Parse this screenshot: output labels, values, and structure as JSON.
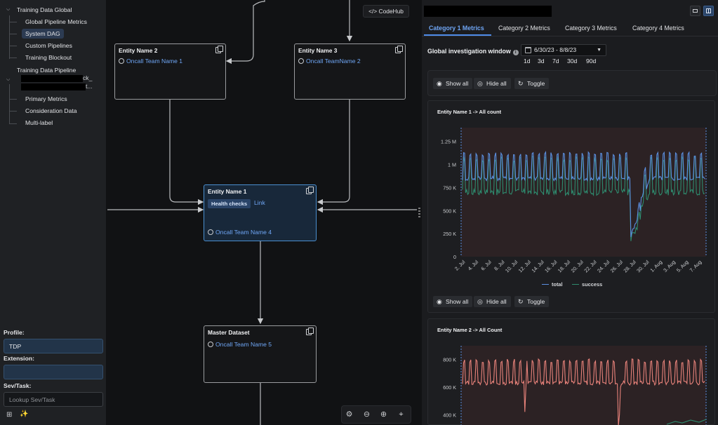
{
  "sidebar": {
    "tree": [
      {
        "label": "Training Data Global",
        "level": 0,
        "expanded": true
      },
      {
        "label": "Global Pipeline Metrics",
        "level": 1
      },
      {
        "label": "System DAG",
        "level": 1,
        "selected": true
      },
      {
        "label": "Custom Pipelines",
        "level": 1
      },
      {
        "label": "Training Blockout",
        "level": 1
      },
      {
        "label": "Training Data Pipeline",
        "level": 0
      },
      {
        "label": "Primary Metrics",
        "level": 1
      },
      {
        "label": "Consideration Data",
        "level": 1
      },
      {
        "label": "Multi-label",
        "level": 1
      }
    ],
    "redacted_item_text_fragment_1": "ck_",
    "redacted_item_text_fragment_2": "t...",
    "profile_label": "Profile:",
    "profile_value": "TDP",
    "extension_label": "Extension:",
    "extension_value": "",
    "sev_label": "Sev/Task:",
    "sev_placeholder": "Lookup Sev/Task"
  },
  "graph": {
    "codehub_label": "CodeHub",
    "codehub_icon": "code-icon",
    "nodes": [
      {
        "id": "entity2",
        "title": "Entity Name 2",
        "team": "Oncall Team Name 1"
      },
      {
        "id": "entity3",
        "title": "Entity Name 3",
        "team": "Oncall TeamName 2"
      },
      {
        "id": "entity1",
        "title": "Entity Name 1",
        "team": "Oncall Team Name 4",
        "badge": "Health checks",
        "link": "Link"
      },
      {
        "id": "master",
        "title": "Master Dataset",
        "team": "Oncall Team Name 5"
      }
    ],
    "zoom_controls": [
      "fit-icon",
      "zoom-out-icon",
      "zoom-in-icon",
      "recenter-icon"
    ]
  },
  "right": {
    "tabs": [
      "Category 1 Metrics",
      "Category 2 Metrics",
      "Category 3 Metrics",
      "Category 4 Metrics"
    ],
    "active_tab": 0,
    "window_label": "Global investigation window",
    "date_range": "6/30/23 - 8/8/23",
    "quick_ranges": [
      "1d",
      "3d",
      "7d",
      "30d",
      "90d"
    ],
    "buttons": {
      "show_all": "Show all",
      "hide_all": "Hide all",
      "toggle": "Toggle"
    },
    "colors": {
      "accent": "#4f8be8",
      "total": "#5b8fe0",
      "success": "#2e8b6e",
      "entity2": "#e8827a",
      "plot_bg": "#2c2224"
    }
  },
  "chart_data": [
    {
      "type": "line",
      "title": "Entity Name 1 -> All count",
      "x_tick_labels": [
        "2. Jul",
        "4. Jul",
        "6. Jul",
        "8. Jul",
        "10. Jul",
        "12. Jul",
        "14. Jul",
        "16. Jul",
        "18. Jul",
        "20. Jul",
        "22. Jul",
        "24. Jul",
        "26. Jul",
        "28. Jul",
        "30. Jul",
        "1. Aug",
        "3. Aug",
        "5. Aug",
        "7. Aug"
      ],
      "y_tick_labels": [
        "0",
        "250 K",
        "500 K",
        "750 K",
        "1 M",
        "1.25 M"
      ],
      "ylim": [
        0,
        1400000
      ],
      "series": [
        {
          "name": "total",
          "color": "#5b8fe0",
          "pattern": {
            "base": 850000,
            "peak": 1180000,
            "period_days": 1,
            "dip_day": 27,
            "dip_value": 200000
          }
        },
        {
          "name": "success",
          "color": "#2e8b6e",
          "pattern": {
            "base": 700000,
            "peak": 1150000,
            "period_days": 1,
            "dip_day": 27,
            "dip_value": 150000
          }
        }
      ]
    },
    {
      "type": "line",
      "title": "Entity Name 2 -> All Count",
      "y_tick_labels": [
        "400 K",
        "600 K",
        "800 K"
      ],
      "series": [
        {
          "color": "#e8827a",
          "pattern": {
            "base": 630000,
            "peak": 830000,
            "period_days": 1
          }
        }
      ]
    }
  ]
}
